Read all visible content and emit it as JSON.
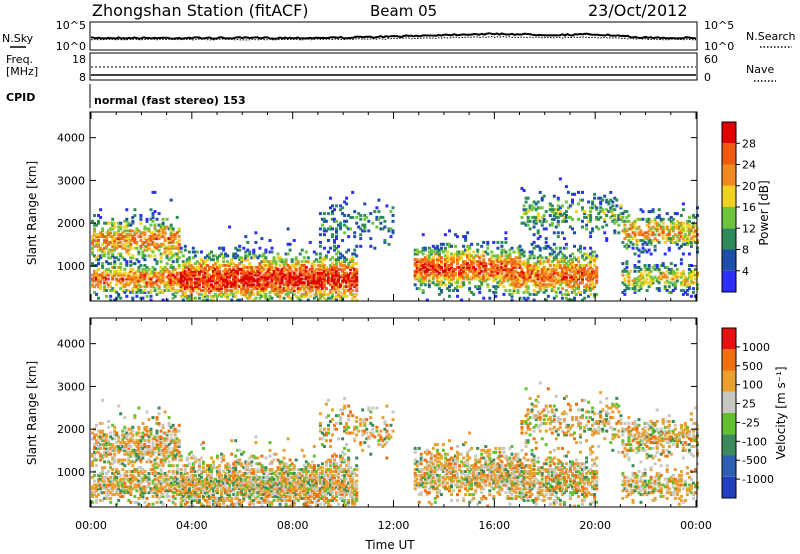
{
  "header": {
    "station": "Zhongshan Station (fitACF)",
    "beam": "Beam 05",
    "date": "23/Oct/2012"
  },
  "top_panels": {
    "nsky_label": "N.Sky",
    "nsky_ticks": [
      "10^5",
      "10^0"
    ],
    "nsearch_ticks": [
      "10^5",
      "10^0"
    ],
    "nsearch_label": "N.Search",
    "freq_label_1": "Freq.",
    "freq_label_2": "[MHz]",
    "freq_ticks": [
      "18",
      "8"
    ],
    "nave_ticks": [
      "60",
      "0"
    ],
    "nave_label": "Nave",
    "cpid_label": "CPID",
    "cpid_text": "normal (fast stereo) 153"
  },
  "chart_data": [
    {
      "type": "heatmap",
      "title": "",
      "xlabel": "Time UT",
      "ylabel": "Slant Range [km]",
      "x_ticks": [
        "00:00",
        "04:00",
        "08:00",
        "12:00",
        "16:00",
        "20:00",
        "00:00"
      ],
      "y_ticks": [
        1000,
        2000,
        3000,
        4000
      ],
      "ylim": [
        180,
        4600
      ],
      "colorbar_label": "Power [dB]",
      "colorbar_ticks": [
        "28",
        "24",
        "20",
        "16",
        "12",
        "8",
        "4"
      ],
      "colors": [
        "#2d2dff",
        "#1e4fa8",
        "#2e8a5a",
        "#6cc43c",
        "#f0d020",
        "#f08a20",
        "#ee5a10",
        "#e00000"
      ]
    },
    {
      "type": "heatmap",
      "title": "",
      "xlabel": "Time UT",
      "ylabel": "Slant Range [km]",
      "x_ticks": [
        "00:00",
        "04:00",
        "08:00",
        "12:00",
        "16:00",
        "20:00",
        "00:00"
      ],
      "y_ticks": [
        1000,
        2000,
        3000,
        4000
      ],
      "ylim": [
        180,
        4600
      ],
      "colorbar_label": "Velocity [m s⁻¹]",
      "colorbar_ticks": [
        "1000",
        "500",
        "100",
        "25",
        "-25",
        "-100",
        "-500",
        "-1000"
      ],
      "colors": [
        "#2040c0",
        "#2f5fb0",
        "#3b8a5a",
        "#60c030",
        "#c8c8c0",
        "#e8a030",
        "#f07010",
        "#e81010"
      ]
    }
  ]
}
